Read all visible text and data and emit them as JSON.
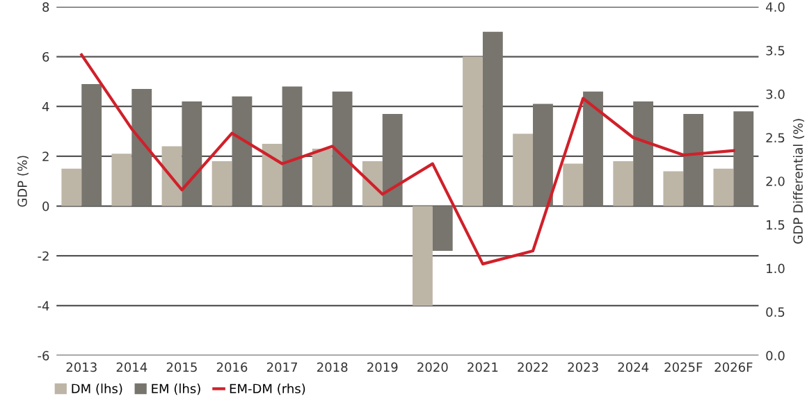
{
  "chart_data": {
    "type": "bar",
    "ylabel": "GDP (%)",
    "y2label": "GDP Differential (%)",
    "categories": [
      "2013",
      "2014",
      "2015",
      "2016",
      "2017",
      "2018",
      "2019",
      "2020",
      "2021",
      "2022",
      "2023",
      "2024",
      "2025F",
      "2026F"
    ],
    "series": [
      {
        "name": "DM (lhs)",
        "color": "#bdb5a6",
        "values": [
          1.5,
          2.1,
          2.4,
          1.8,
          2.5,
          2.3,
          1.8,
          -4.0,
          6.0,
          2.9,
          1.7,
          1.8,
          1.4,
          1.5
        ]
      },
      {
        "name": "EM (lhs)",
        "color": "#77756d",
        "values": [
          4.9,
          4.7,
          4.2,
          4.4,
          4.8,
          4.6,
          3.7,
          -1.8,
          7.0,
          4.1,
          4.6,
          4.2,
          3.7,
          3.8
        ]
      },
      {
        "name": "EM-DM (rhs)",
        "type": "line",
        "axis": "y2",
        "color": "#d0202a",
        "values": [
          3.45,
          2.6,
          1.9,
          2.55,
          2.2,
          2.4,
          1.85,
          2.2,
          1.05,
          1.2,
          2.95,
          2.5,
          2.3,
          2.35
        ]
      }
    ],
    "ylim": [
      -6,
      8
    ],
    "yticks": [
      -6,
      -4,
      -2,
      0,
      2,
      4,
      6,
      8
    ],
    "y2lim": [
      0.0,
      4.0
    ],
    "y2ticks": [
      {
        "value": 0,
        "label": "0.0"
      },
      {
        "value": 0.5,
        "label": "0.5"
      },
      {
        "value": 1,
        "label": "1.0"
      },
      {
        "value": 1.5,
        "label": "1.5"
      },
      {
        "value": 2,
        "label": "2.0"
      },
      {
        "value": 2.5,
        "label": "2.5"
      },
      {
        "value": 3,
        "label": "3.0"
      },
      {
        "value": 3.5,
        "label": "3.5"
      },
      {
        "value": 4,
        "label": "4.0"
      }
    ],
    "grid": "y",
    "legend": "bottom left"
  }
}
